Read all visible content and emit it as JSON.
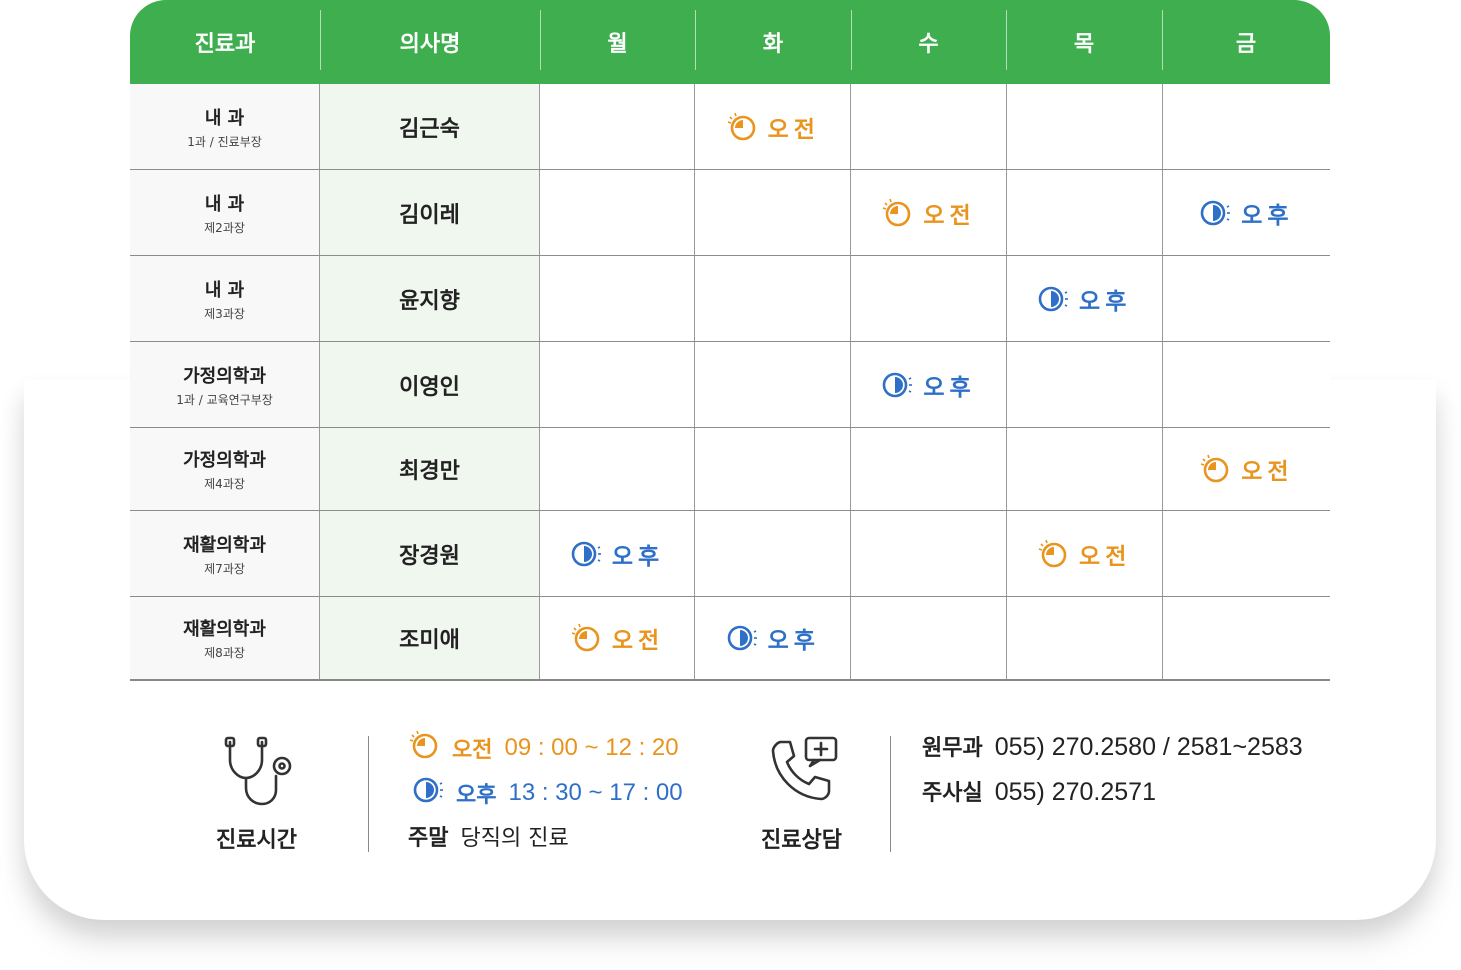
{
  "table": {
    "headers": [
      "진료과",
      "의사명",
      "월",
      "화",
      "수",
      "목",
      "금"
    ],
    "rows": [
      {
        "dept": "내 과",
        "sub": "1과 / 진료부장",
        "doctor": "김근숙",
        "slots": [
          "",
          "am",
          "",
          "",
          ""
        ]
      },
      {
        "dept": "내 과",
        "sub": "제2과장",
        "doctor": "김이레",
        "slots": [
          "",
          "",
          "am",
          "",
          "pm"
        ]
      },
      {
        "dept": "내 과",
        "sub": "제3과장",
        "doctor": "윤지향",
        "slots": [
          "",
          "",
          "",
          "pm",
          ""
        ]
      },
      {
        "dept": "가정의학과",
        "sub": "1과 / 교육연구부장",
        "doctor": "이영인",
        "slots": [
          "",
          "",
          "pm",
          "",
          ""
        ]
      },
      {
        "dept": "가정의학과",
        "sub": "제4과장",
        "doctor": "최경만",
        "slots": [
          "",
          "",
          "",
          "",
          "am"
        ]
      },
      {
        "dept": "재활의학과",
        "sub": "제7과장",
        "doctor": "장경원",
        "slots": [
          "pm",
          "",
          "",
          "am",
          ""
        ]
      },
      {
        "dept": "재활의학과",
        "sub": "제8과장",
        "doctor": "조미애",
        "slots": [
          "am",
          "pm",
          "",
          "",
          ""
        ]
      }
    ],
    "am_label": "오전",
    "pm_label": "오후"
  },
  "legend": {
    "hours_title": "진료시간",
    "am_label": "오전",
    "am_time": "09 : 00 ~ 12 : 20",
    "pm_label": "오후",
    "pm_time": "13 : 30 ~ 17 : 00",
    "weekend_label": "주말",
    "weekend_text": "당직의 진료",
    "consult_title": "진료상담",
    "contacts": [
      {
        "label": "원무과",
        "value": "055) 270.2580 / 2581~2583"
      },
      {
        "label": "주사실",
        "value": "055) 270.2571"
      }
    ]
  },
  "colors": {
    "header_green": "#3eae4f",
    "am": "#e8941e",
    "pm": "#2e6fc7",
    "doctor_bg": "#f0f7ef"
  }
}
